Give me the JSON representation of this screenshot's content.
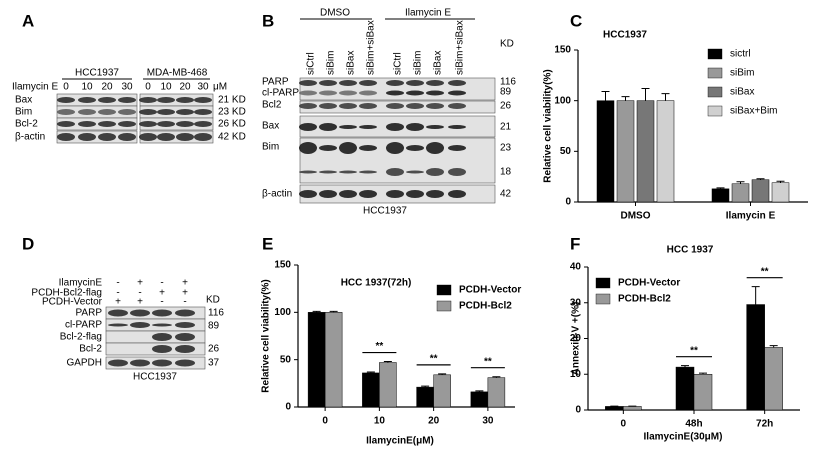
{
  "blots": {
    "A": {
      "letter": "A",
      "treatment": "Ilamycin E",
      "groups": [
        "HCC1937",
        "MDA-MB-468"
      ],
      "doses": [
        "0",
        "10",
        "20",
        "30",
        "0",
        "10",
        "20",
        "30"
      ],
      "dose_unit": "μM",
      "rows": [
        "Bax",
        "Bim",
        "Bcl-2",
        "β-actin"
      ],
      "sizes": [
        "21 KD",
        "23 KD",
        "26 KD",
        "42 KD"
      ]
    },
    "B": {
      "letter": "B",
      "groups": [
        "DMSO",
        "Ilamycin E"
      ],
      "lanes": [
        "siCtrl",
        "siBim",
        "siBax",
        "siBim+siBax",
        "siCtrl",
        "siBim",
        "siBax",
        "siBim+siBax"
      ],
      "size_unit": "KD",
      "rows": [
        "PARP",
        "cl-PARP",
        "Bcl2",
        "Bax",
        "Bim",
        "β-actin"
      ],
      "sizes": [
        "116",
        "89",
        "26",
        "21",
        "23",
        "18",
        "42"
      ],
      "caption": "HCC1937"
    },
    "D": {
      "letter": "D",
      "conditions": [
        {
          "name": "IlamycinE",
          "signs": [
            "-",
            "+",
            "-",
            "+"
          ]
        },
        {
          "name": "PCDH-Bcl2-flag",
          "signs": [
            "-",
            "-",
            "+",
            "+"
          ]
        },
        {
          "name": "PCDH-Vector",
          "signs": [
            "+",
            "+",
            "-",
            "-"
          ]
        }
      ],
      "size_unit": "KD",
      "rows": [
        "PARP",
        "cl-PARP",
        "Bcl-2-flag",
        "Bcl-2",
        "GAPDH"
      ],
      "sizes": [
        "116",
        "89",
        "26",
        "37"
      ],
      "caption": "HCC1937"
    }
  },
  "chart_data": [
    {
      "letter": "C",
      "type": "bar",
      "title": "HCC1937",
      "y_label": "Relative cell viability(%)",
      "categories": [
        "DMSO",
        "Ilamycin E"
      ],
      "series": [
        {
          "name": "sictrl",
          "color": "#000000",
          "values": [
            100,
            13
          ],
          "errors": [
            9,
            1
          ]
        },
        {
          "name": "siBim",
          "color": "#999999",
          "values": [
            100,
            18
          ],
          "errors": [
            4,
            2
          ]
        },
        {
          "name": "siBax",
          "color": "#777777",
          "values": [
            100,
            22
          ],
          "errors": [
            12,
            1
          ]
        },
        {
          "name": "siBax+Bim",
          "color": "#d0d0d0",
          "values": [
            100,
            19
          ],
          "errors": [
            7,
            1.5
          ]
        }
      ],
      "ylim": [
        0,
        150
      ],
      "yticks": [
        0,
        50,
        100,
        150
      ],
      "legend": "upper right"
    },
    {
      "letter": "E",
      "type": "bar",
      "title": "HCC 1937(72h)",
      "x_label": "IlamycinE(μM)",
      "y_label": "Relative cell viability(%)",
      "categories": [
        "0",
        "10",
        "20",
        "30"
      ],
      "series": [
        {
          "name": "PCDH-Vector",
          "color": "#000000",
          "values": [
            100,
            36,
            21,
            16
          ],
          "errors": [
            1,
            1,
            1,
            1
          ]
        },
        {
          "name": "PCDH-Bcl2",
          "color": "#999999",
          "values": [
            100,
            47,
            34,
            31
          ],
          "errors": [
            1,
            1,
            1,
            1
          ]
        }
      ],
      "significance": [
        null,
        "**",
        "**",
        "**"
      ],
      "ylim": [
        0,
        150
      ],
      "yticks": [
        0,
        50,
        100,
        150
      ],
      "legend": "upper right"
    },
    {
      "letter": "F",
      "type": "bar",
      "title": "HCC 1937",
      "x_label": "IlamycinE(30μM)",
      "y_label": "Annexin-V +(%)",
      "categories": [
        "0",
        "48h",
        "72h"
      ],
      "series": [
        {
          "name": "PCDH-Vector",
          "color": "#000000",
          "values": [
            1,
            12,
            29.5
          ],
          "errors": [
            0.1,
            0.4,
            5
          ]
        },
        {
          "name": "PCDH-Bcl2",
          "color": "#999999",
          "values": [
            1,
            10,
            17.5
          ],
          "errors": [
            0.1,
            0.3,
            0.5
          ]
        }
      ],
      "significance": [
        null,
        "**",
        "**"
      ],
      "ylim": [
        0,
        40
      ],
      "yticks": [
        0,
        10,
        20,
        30,
        40
      ],
      "legend": "upper left"
    }
  ]
}
